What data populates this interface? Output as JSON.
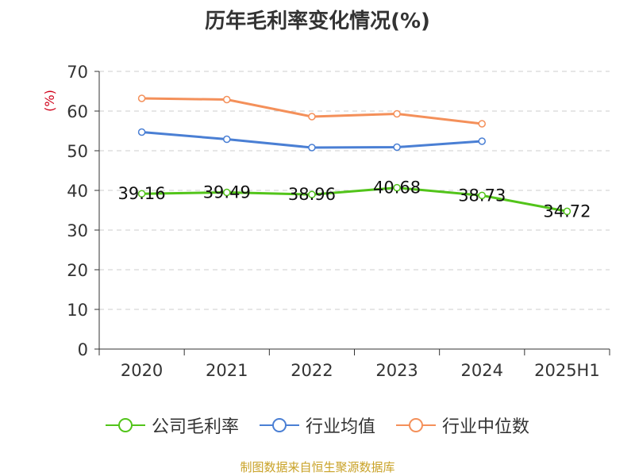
{
  "chart_data": {
    "type": "line",
    "title": "历年毛利率变化情况(%)",
    "ylabel": "(%)",
    "xlabel": "",
    "categories": [
      "2020",
      "2021",
      "2022",
      "2023",
      "2024",
      "2025H1"
    ],
    "ylim": [
      0,
      70
    ],
    "yticks": [
      0,
      10,
      20,
      30,
      40,
      50,
      60,
      70
    ],
    "grid": true,
    "legend_position": "bottom",
    "series": [
      {
        "name": "公司毛利率",
        "color": "#52c41a",
        "values": [
          39.16,
          39.49,
          38.96,
          40.68,
          38.73,
          34.72
        ],
        "labels": [
          "39.16",
          "39.49",
          "38.96",
          "40.68",
          "38.73",
          "34.72"
        ]
      },
      {
        "name": "行业均值",
        "color": "#4a7fd4",
        "values": [
          54.7,
          52.9,
          50.8,
          50.9,
          52.4,
          null
        ]
      },
      {
        "name": "行业中位数",
        "color": "#f4905a",
        "values": [
          63.2,
          62.9,
          58.6,
          59.3,
          56.8,
          null
        ]
      }
    ]
  },
  "footer": {
    "source": "制图数据来自恒生聚源数据库"
  },
  "colors": {
    "axis": "#333333",
    "grid": "#cccccc",
    "ylabel": "#d0021b",
    "source": "#c9a227"
  }
}
